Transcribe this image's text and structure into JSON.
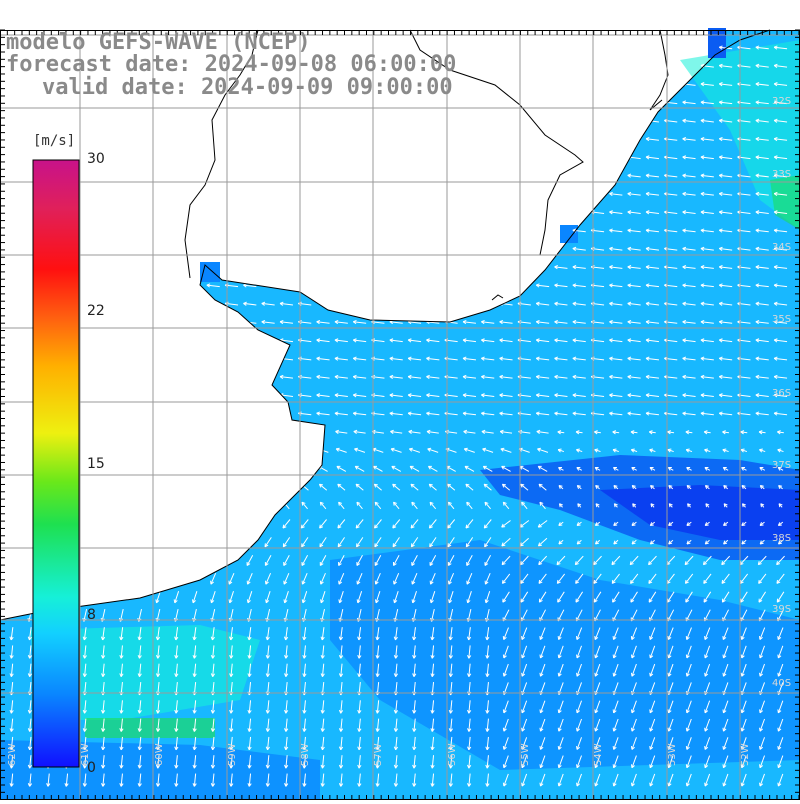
{
  "title": {
    "model": "modelo GEFS-WAVE (NCEP)",
    "forecast": "forecast date: 2024-09-08 06:00:00",
    "valid": "valid date: 2024-09-09 09:00:00"
  },
  "colorbar": {
    "unit": "[m/s]",
    "ticks": [
      {
        "value": 30,
        "label": "30"
      },
      {
        "value": 22,
        "label": "22"
      },
      {
        "value": 15,
        "label": "15"
      },
      {
        "value": 8,
        "label": "8"
      },
      {
        "value": 0,
        "label": "0"
      }
    ],
    "range": [
      0,
      30
    ],
    "colors": [
      "#1010ff",
      "#0a86ff",
      "#12d0ff",
      "#16f0d8",
      "#1ee050",
      "#6ae81a",
      "#eef010",
      "#ffb000",
      "#ff6010",
      "#ff1010",
      "#e0205a",
      "#c8128a"
    ]
  },
  "map": {
    "lat_labels": [
      "32S",
      "33S",
      "34S",
      "35S",
      "36S",
      "37S",
      "38S",
      "39S",
      "40S"
    ],
    "lon_labels": [
      "62W",
      "61W",
      "60W",
      "59W",
      "58W",
      "57W",
      "56W",
      "55W",
      "54W",
      "53W",
      "52W"
    ],
    "land_color": "#ffffff",
    "ocean_base_color": "#18b8ff",
    "grid_color": "#9a9a9a",
    "arrow_color": "#ffffff"
  }
}
